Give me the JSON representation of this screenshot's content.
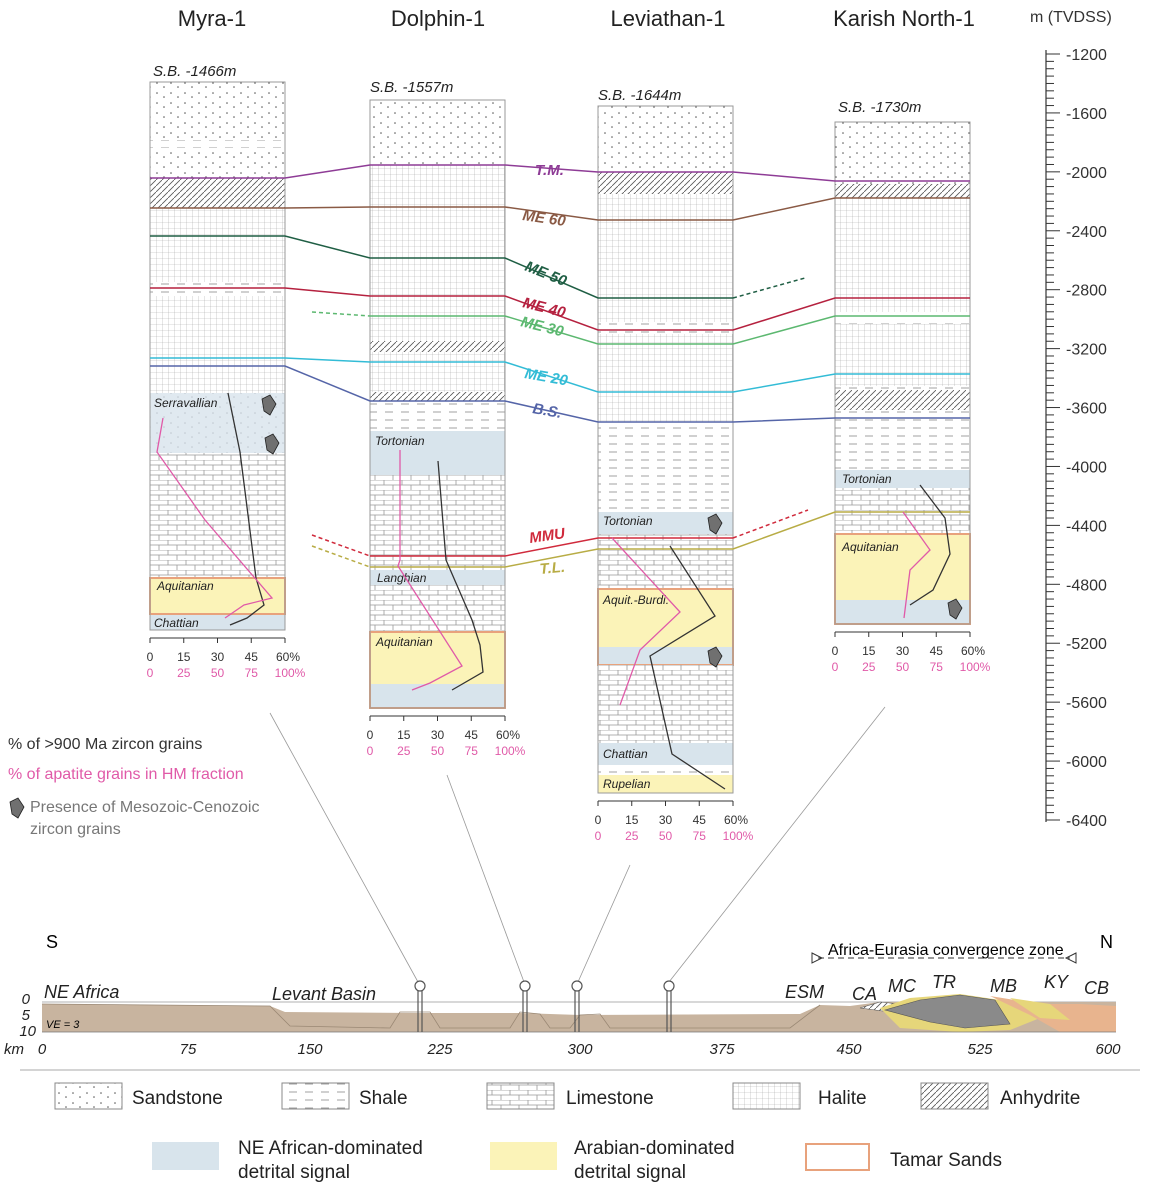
{
  "wells": [
    {
      "name": "Myra-1",
      "sb": "S.B. -1466m",
      "stages": [
        {
          "label": "Serravallian"
        },
        {
          "label": "Aquitanian"
        },
        {
          "label": "Chattian"
        }
      ],
      "axis_top": [
        "0",
        "15",
        "30",
        "45",
        "60%"
      ],
      "axis_bottom": [
        "0",
        "25",
        "50",
        "75",
        "100%"
      ]
    },
    {
      "name": "Dolphin-1",
      "sb": "S.B. -1557m",
      "stages": [
        {
          "label": "Tortonian"
        },
        {
          "label": "Langhian"
        },
        {
          "label": "Aquitanian"
        }
      ],
      "axis_top": [
        "0",
        "15",
        "30",
        "45",
        "60%"
      ],
      "axis_bottom": [
        "0",
        "25",
        "50",
        "75",
        "100%"
      ]
    },
    {
      "name": "Leviathan-1",
      "sb": "S.B. -1644m",
      "stages": [
        {
          "label": "Tortonian"
        },
        {
          "label": "Aquit.-Burdi."
        },
        {
          "label": "Chattian"
        },
        {
          "label": "Rupelian"
        }
      ],
      "axis_top": [
        "0",
        "15",
        "30",
        "45",
        "60%"
      ],
      "axis_bottom": [
        "0",
        "25",
        "50",
        "75",
        "100%"
      ]
    },
    {
      "name": "Karish North-1",
      "sb": "S.B. -1730m",
      "stages": [
        {
          "label": "Tortonian"
        },
        {
          "label": "Aquitanian"
        }
      ],
      "axis_top": [
        "0",
        "15",
        "30",
        "45",
        "60%"
      ],
      "axis_bottom": [
        "0",
        "25",
        "50",
        "75",
        "100%"
      ]
    }
  ],
  "horizons": [
    {
      "label": "T.M.",
      "color": "#8e3c96"
    },
    {
      "label": "ME 60",
      "color": "#8a5a45"
    },
    {
      "label": "ME 50",
      "color": "#1f5e44"
    },
    {
      "label": "ME 40",
      "color": "#b5213f"
    },
    {
      "label": "ME 30",
      "color": "#5cb870"
    },
    {
      "label": "ME 20",
      "color": "#33bcd6"
    },
    {
      "label": "B.S.",
      "color": "#5565a8"
    },
    {
      "label": "MMU",
      "color": "#d02a3c"
    },
    {
      "label": "T.L.",
      "color": "#b8ac45"
    }
  ],
  "depth_scale": {
    "title": "m (TVDSS)",
    "labels": [
      "-1200",
      "-1600",
      "-2000",
      "-2400",
      "-2800",
      "-3200",
      "-3600",
      "-4000",
      "-4400",
      "-4800",
      "-5200",
      "-5600",
      "-6000",
      "-6400"
    ]
  },
  "key": {
    "zircon": "% of >900 Ma zircon grains",
    "apatite": "% of apatite grains in HM fraction",
    "meso_1": "Presence of Mesozoic-Cenozoic",
    "meso_2": "zircon grains"
  },
  "section": {
    "south": "S",
    "north": "N",
    "convergence": "Africa-Eurasia convergence zone",
    "labels": [
      "NE Africa",
      "Levant Basin",
      "ESM",
      "CA",
      "MC",
      "TR",
      "MB",
      "KY",
      "CB"
    ],
    "ve": "VE = 3",
    "depth_ticks": [
      "0",
      "5",
      "10"
    ],
    "km_unit": "km",
    "x_ticks": [
      "0",
      "75",
      "150",
      "225",
      "300",
      "375",
      "450",
      "525",
      "600"
    ]
  },
  "legend": {
    "sandstone": "Sandstone",
    "shale": "Shale",
    "limestone": "Limestone",
    "halite": "Halite",
    "anhydrite": "Anhydrite",
    "ne_african_1": "NE African-dominated",
    "ne_african_2": "detrital signal",
    "arabian_1": "Arabian-dominated",
    "arabian_2": "detrital signal",
    "tamar": "Tamar Sands"
  },
  "colors": {
    "ne_african": "#d8e4ec",
    "arabian": "#fbf3b8",
    "tamar": "#e8a27c",
    "zircon_line": "#333333",
    "apatite_line": "#e05aa8"
  }
}
